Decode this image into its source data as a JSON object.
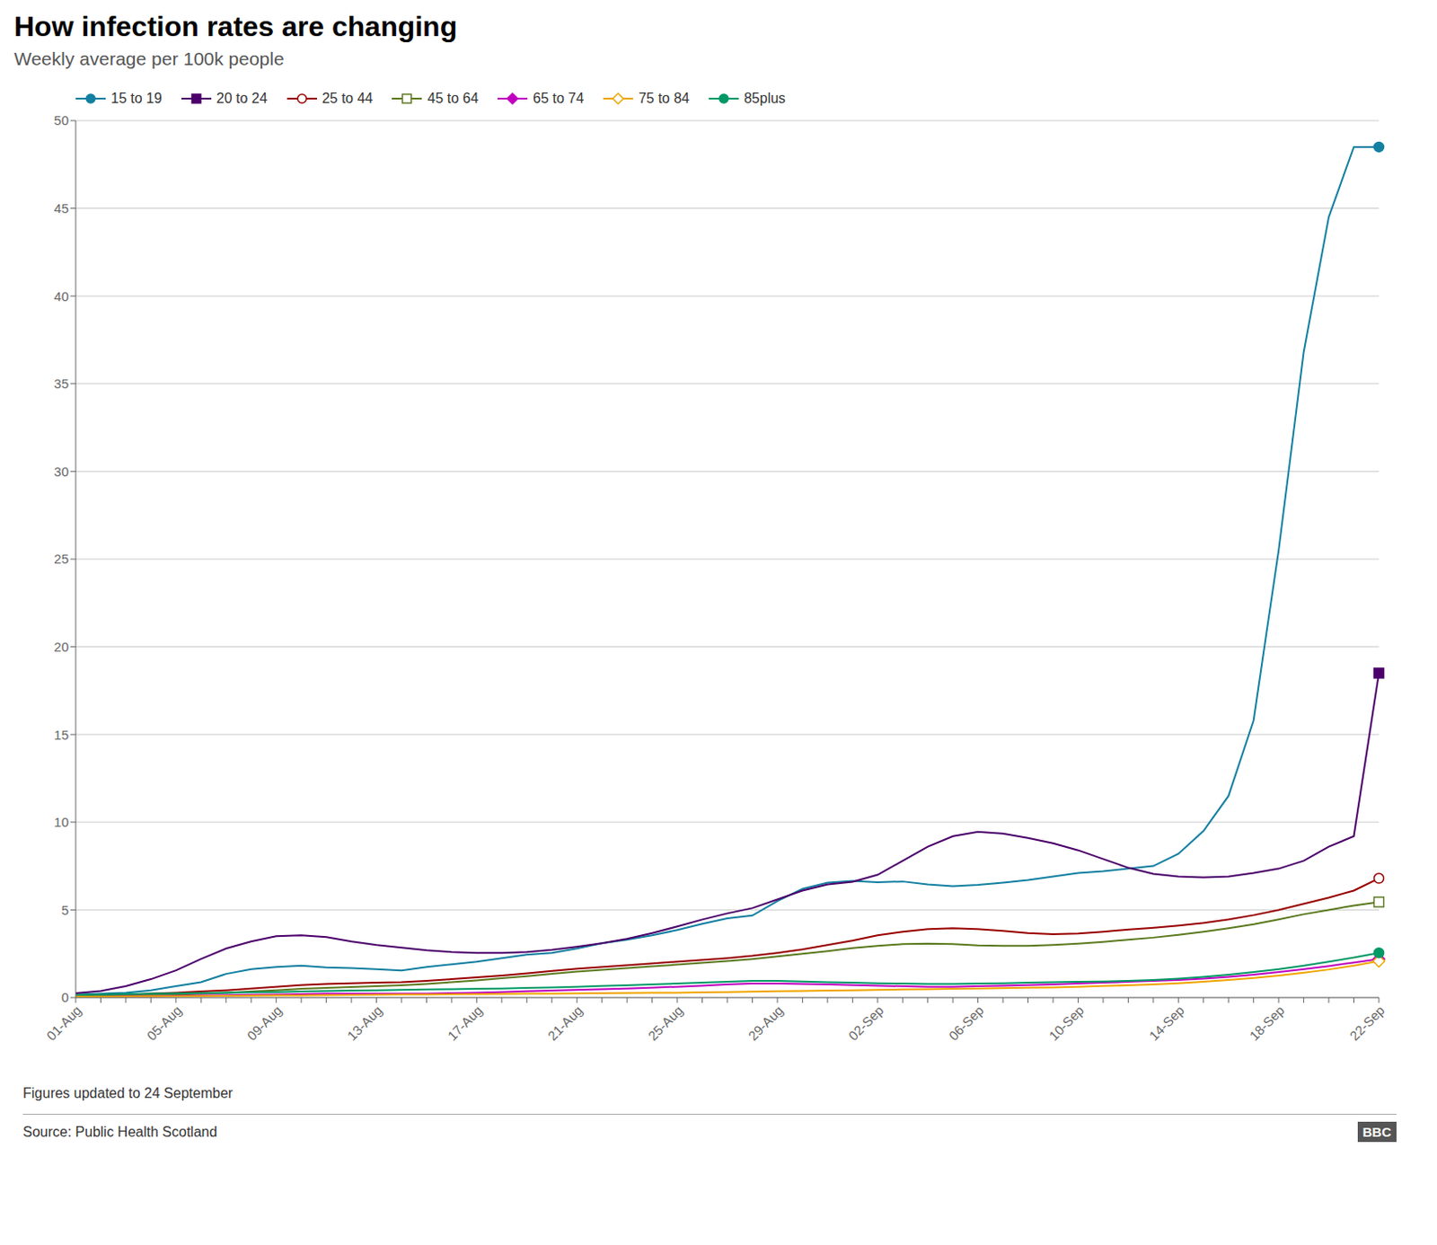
{
  "chart_data": {
    "type": "line",
    "title": "How infection rates are changing",
    "subtitle": "Weekly average per 100k people",
    "annotations": [
      "Figures updated to 24 September",
      "Source: Public Health Scotland",
      "BBC"
    ],
    "categories": [
      "01-Aug",
      null,
      null,
      null,
      "05-Aug",
      null,
      null,
      null,
      "09-Aug",
      null,
      null,
      null,
      "13-Aug",
      null,
      null,
      null,
      "17-Aug",
      null,
      null,
      null,
      "21-Aug",
      null,
      null,
      null,
      "25-Aug",
      null,
      null,
      null,
      "29-Aug",
      null,
      null,
      null,
      "02-Sep",
      null,
      null,
      null,
      "06-Sep",
      null,
      null,
      null,
      "10-Sep",
      null,
      null,
      null,
      "14-Sep",
      null,
      null,
      null,
      "18-Sep",
      null,
      null,
      null,
      "22-Sep"
    ],
    "ylim": [
      0,
      50
    ],
    "yticks": [
      0,
      5,
      10,
      15,
      20,
      25,
      30,
      35,
      40,
      45,
      50
    ],
    "grid": true,
    "legend": "top",
    "series": [
      {
        "name": "15 to 19",
        "color": "#1380A1",
        "marker": "circle",
        "values": [
          0.18,
          0.22,
          0.28,
          0.42,
          0.65,
          0.88,
          1.35,
          1.62,
          1.75,
          1.82,
          1.72,
          1.68,
          1.62,
          1.55,
          1.75,
          1.9,
          2.05,
          2.25,
          2.45,
          2.55,
          2.8,
          3.1,
          3.3,
          3.55,
          3.85,
          4.2,
          4.52,
          4.68,
          5.5,
          6.2,
          6.55,
          6.65,
          6.58,
          6.62,
          6.45,
          6.35,
          6.42,
          6.55,
          6.7,
          6.9,
          7.1,
          7.2,
          7.35,
          7.5,
          8.2,
          9.5,
          11.5,
          15.8,
          25.5,
          36.8,
          44.5,
          48.5,
          48.5
        ]
      },
      {
        "name": "20 to 24",
        "color": "#4C006B",
        "marker": "square",
        "values": [
          0.25,
          0.38,
          0.65,
          1.05,
          1.55,
          2.2,
          2.8,
          3.2,
          3.5,
          3.55,
          3.45,
          3.2,
          3.0,
          2.85,
          2.7,
          2.6,
          2.55,
          2.55,
          2.6,
          2.72,
          2.9,
          3.1,
          3.35,
          3.68,
          4.05,
          4.45,
          4.8,
          5.1,
          5.6,
          6.1,
          6.45,
          6.6,
          7.0,
          7.8,
          8.6,
          9.2,
          9.45,
          9.35,
          9.1,
          8.8,
          8.4,
          7.9,
          7.4,
          7.05,
          6.9,
          6.85,
          6.9,
          7.1,
          7.35,
          7.8,
          8.6,
          9.2,
          18.5
        ]
      },
      {
        "name": "25 to 44",
        "color": "#990000",
        "marker": "open_circle",
        "values": [
          0.12,
          0.15,
          0.18,
          0.22,
          0.28,
          0.35,
          0.42,
          0.52,
          0.62,
          0.72,
          0.78,
          0.82,
          0.85,
          0.88,
          0.95,
          1.05,
          1.15,
          1.25,
          1.38,
          1.52,
          1.65,
          1.75,
          1.85,
          1.95,
          2.05,
          2.15,
          2.25,
          2.38,
          2.55,
          2.75,
          3.0,
          3.25,
          3.55,
          3.75,
          3.9,
          3.95,
          3.9,
          3.8,
          3.68,
          3.62,
          3.65,
          3.75,
          3.88,
          3.98,
          4.1,
          4.25,
          4.45,
          4.7,
          5.0,
          5.35,
          5.7,
          6.1,
          6.8
        ]
      },
      {
        "name": "45 to 64",
        "color": "#5C7A1F",
        "marker": "open_square",
        "values": [
          0.08,
          0.1,
          0.12,
          0.15,
          0.18,
          0.22,
          0.28,
          0.35,
          0.42,
          0.5,
          0.55,
          0.6,
          0.65,
          0.7,
          0.78,
          0.88,
          0.98,
          1.1,
          1.22,
          1.35,
          1.48,
          1.58,
          1.68,
          1.78,
          1.88,
          1.98,
          2.08,
          2.2,
          2.35,
          2.5,
          2.65,
          2.82,
          2.95,
          3.05,
          3.08,
          3.05,
          2.98,
          2.95,
          2.95,
          3.0,
          3.08,
          3.18,
          3.3,
          3.42,
          3.58,
          3.75,
          3.95,
          4.18,
          4.45,
          4.75,
          5.0,
          5.25,
          5.45
        ]
      },
      {
        "name": "65 to 74",
        "color": "#C000C0",
        "marker": "diamond",
        "values": [
          0.05,
          0.06,
          0.07,
          0.08,
          0.1,
          0.12,
          0.14,
          0.16,
          0.18,
          0.2,
          0.22,
          0.22,
          0.22,
          0.22,
          0.22,
          0.25,
          0.28,
          0.32,
          0.36,
          0.4,
          0.44,
          0.48,
          0.52,
          0.56,
          0.62,
          0.68,
          0.75,
          0.8,
          0.8,
          0.78,
          0.75,
          0.72,
          0.68,
          0.65,
          0.62,
          0.62,
          0.65,
          0.68,
          0.72,
          0.75,
          0.8,
          0.85,
          0.9,
          0.95,
          1.0,
          1.08,
          1.18,
          1.3,
          1.45,
          1.62,
          1.8,
          2.0,
          2.2
        ]
      },
      {
        "name": "75 to 84",
        "color": "#F0A500",
        "marker": "open_diamond",
        "values": [
          0.05,
          0.05,
          0.06,
          0.07,
          0.08,
          0.09,
          0.1,
          0.11,
          0.12,
          0.13,
          0.14,
          0.15,
          0.16,
          0.17,
          0.18,
          0.19,
          0.2,
          0.21,
          0.22,
          0.23,
          0.24,
          0.25,
          0.26,
          0.27,
          0.28,
          0.3,
          0.32,
          0.34,
          0.36,
          0.38,
          0.4,
          0.42,
          0.44,
          0.46,
          0.48,
          0.5,
          0.52,
          0.54,
          0.56,
          0.58,
          0.62,
          0.66,
          0.7,
          0.75,
          0.82,
          0.9,
          1.0,
          1.12,
          1.25,
          1.42,
          1.6,
          1.82,
          2.08
        ]
      },
      {
        "name": "85plus",
        "color": "#009966",
        "marker": "circle",
        "values": [
          0.15,
          0.18,
          0.2,
          0.22,
          0.24,
          0.26,
          0.28,
          0.3,
          0.32,
          0.35,
          0.38,
          0.4,
          0.42,
          0.44,
          0.46,
          0.48,
          0.5,
          0.52,
          0.55,
          0.58,
          0.62,
          0.66,
          0.7,
          0.75,
          0.8,
          0.85,
          0.9,
          0.95,
          0.95,
          0.92,
          0.88,
          0.85,
          0.82,
          0.8,
          0.78,
          0.78,
          0.8,
          0.82,
          0.85,
          0.88,
          0.9,
          0.92,
          0.95,
          1.0,
          1.08,
          1.18,
          1.3,
          1.45,
          1.62,
          1.82,
          2.05,
          2.28,
          2.55
        ]
      }
    ]
  }
}
